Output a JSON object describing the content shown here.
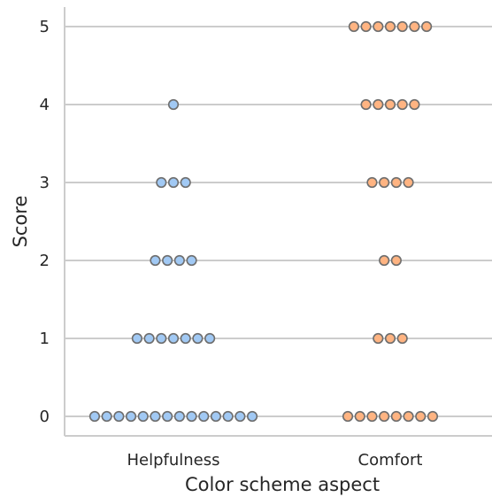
{
  "chart_data": {
    "type": "scatter",
    "subtype": "swarm",
    "xlabel": "Color scheme aspect",
    "ylabel": "Score",
    "categories": [
      "Helpfulness",
      "Comfort"
    ],
    "y_ticks": [
      "0",
      "1",
      "2",
      "3",
      "4",
      "5"
    ],
    "ylim": [
      -0.25,
      5.25
    ],
    "grid": "horizontal",
    "legend": "none",
    "series": [
      {
        "category": "Helpfulness",
        "color": "#a1c9f4",
        "counts": {
          "0": 14,
          "1": 7,
          "2": 4,
          "3": 3,
          "4": 1,
          "5": 0
        }
      },
      {
        "category": "Comfort",
        "color": "#ffb482",
        "counts": {
          "0": 8,
          "1": 3,
          "2": 2,
          "3": 4,
          "4": 5,
          "5": 7
        }
      }
    ],
    "marker_edge_color": "#6e6e6e"
  }
}
